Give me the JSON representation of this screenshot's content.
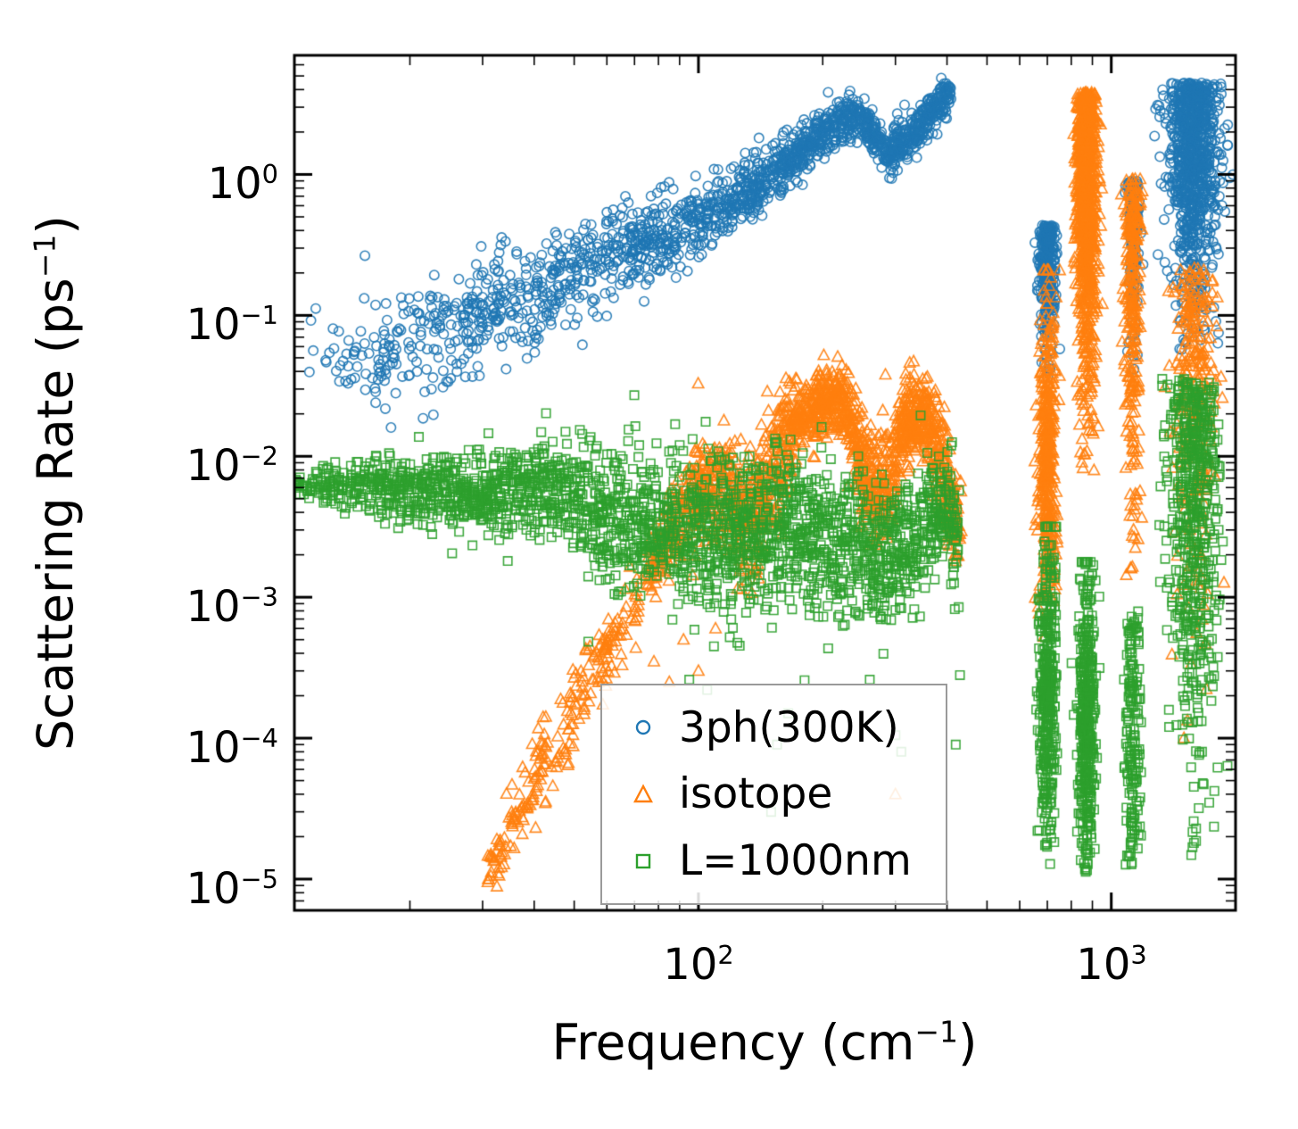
{
  "figure": {
    "background": "#ffffff"
  },
  "chart_data": {
    "type": "scatter",
    "xscale": "log",
    "yscale": "log",
    "xlim": [
      10.5,
      2000
    ],
    "ylim": [
      6e-06,
      7
    ],
    "xlabel": {
      "pre": "Frequency (cm",
      "sup": "−1",
      "post": ")"
    },
    "ylabel": {
      "pre": "Scattering Rate (ps",
      "sup": "−1",
      "post": ")"
    },
    "xticks": [
      {
        "value": 100,
        "base": "10",
        "exp": "2"
      },
      {
        "value": 1000,
        "base": "10",
        "exp": "3"
      }
    ],
    "yticks": [
      {
        "value": 1,
        "base": "10",
        "exp": "0"
      },
      {
        "value": 0.1,
        "base": "10",
        "exp": "−1"
      },
      {
        "value": 0.01,
        "base": "10",
        "exp": "−2"
      },
      {
        "value": 0.001,
        "base": "10",
        "exp": "−3"
      },
      {
        "value": 0.0001,
        "base": "10",
        "exp": "−4"
      },
      {
        "value": 1e-05,
        "base": "10",
        "exp": "−5"
      }
    ],
    "grid": false,
    "legend": {
      "position": "inside lower-center",
      "entries": [
        "3ph(300K)",
        "isotope",
        "L=1000nm"
      ]
    },
    "series": [
      {
        "name": "3ph(300K)",
        "marker": "circle",
        "color": "#1f77b4",
        "bands": [
          {
            "nodes": [
              [
                1.02,
                -1.35,
                0.16
              ],
              [
                1.2,
                -1.28,
                0.18
              ],
              [
                1.4,
                -1.1,
                0.2
              ],
              [
                1.6,
                -0.85,
                0.2
              ],
              [
                1.8,
                -0.55,
                0.17
              ],
              [
                2.0,
                -0.33,
                0.13
              ],
              [
                2.15,
                -0.08,
                0.11
              ],
              [
                2.3,
                0.28,
                0.09
              ],
              [
                2.38,
                0.43,
                0.07
              ],
              [
                2.46,
                0.15,
                0.09
              ],
              [
                2.53,
                0.3,
                0.08
              ],
              [
                2.61,
                0.6,
                0.06
              ]
            ],
            "count": 1700,
            "density_power": 0.55
          }
        ],
        "stripes": [
          {
            "x": 700,
            "x_spread": 0.01,
            "y_log_range": [
              -1.5,
              -0.36
            ],
            "count": 320,
            "bias": "top"
          },
          {
            "x": 1127,
            "x_spread": 0.008,
            "y_log_range": [
              -1.5,
              -0.04
            ],
            "count": 130,
            "bias": "top"
          },
          {
            "x": 1580,
            "x_spread": 0.03,
            "y_log_range": [
              -1.25,
              0.65
            ],
            "count": 950,
            "bias": "top"
          }
        ],
        "extra_points": [
          [
            12.5,
            0.048
          ],
          [
            13.5,
            0.034
          ],
          [
            17,
            0.04
          ],
          [
            18,
            0.016
          ],
          [
            26,
            0.04
          ],
          [
            27,
            0.1
          ]
        ]
      },
      {
        "name": "isotope",
        "marker": "triangle",
        "color": "#ff7f0e",
        "bands": [
          {
            "nodes": [
              [
                1.49,
                -4.95,
                0.1
              ],
              [
                1.58,
                -4.45,
                0.14
              ],
              [
                1.68,
                -3.9,
                0.15
              ],
              [
                1.77,
                -3.4,
                0.14
              ],
              [
                1.86,
                -2.95,
                0.12
              ]
            ],
            "count": 230,
            "density_power": 1
          },
          {
            "nodes": [
              [
                1.87,
                -2.85,
                0.12
              ],
              [
                1.93,
                -2.55,
                0.15
              ],
              [
                2.0,
                -2.2,
                0.18
              ],
              [
                2.06,
                -2.25,
                0.2
              ],
              [
                2.12,
                -2.45,
                0.22
              ],
              [
                2.2,
                -2.0,
                0.22
              ],
              [
                2.24,
                -1.75,
                0.14
              ],
              [
                2.3,
                -1.62,
                0.12
              ],
              [
                2.35,
                -1.58,
                0.12
              ],
              [
                2.4,
                -2.1,
                0.2
              ],
              [
                2.45,
                -2.3,
                0.2
              ],
              [
                2.5,
                -1.75,
                0.14
              ],
              [
                2.55,
                -1.68,
                0.13
              ],
              [
                2.6,
                -2.2,
                0.2
              ],
              [
                2.63,
                -2.5,
                0.15
              ]
            ],
            "count": 1600,
            "density_power": 0.8
          }
        ],
        "stripes": [
          {
            "x": 700,
            "x_spread": 0.01,
            "y_log_range": [
              -3.3,
              -0.68
            ],
            "count": 400,
            "bias": "mid"
          },
          {
            "x": 871,
            "x_spread": 0.012,
            "y_log_range": [
              -2.1,
              0.58
            ],
            "count": 950,
            "bias": "top"
          },
          {
            "x": 1127,
            "x_spread": 0.009,
            "y_log_range": [
              -2.9,
              -0.03
            ],
            "count": 280,
            "bias": "top"
          },
          {
            "x": 1580,
            "x_spread": 0.028,
            "y_log_range": [
              -4.0,
              -0.66
            ],
            "count": 260,
            "bias": "top"
          }
        ],
        "extra_points": [
          [
            78,
            0.00035
          ],
          [
            85,
            0.00025
          ],
          [
            92,
            0.0005
          ],
          [
            100,
            0.0003
          ],
          [
            110,
            0.0006
          ],
          [
            300,
            4e-05
          ],
          [
            1500,
            0.0001
          ]
        ]
      },
      {
        "name": "L=1000nm",
        "marker": "square",
        "color": "#2ca02c",
        "bands": [
          {
            "nodes": [
              [
                1.02,
                -2.22,
                0.05
              ],
              [
                1.2,
                -2.2,
                0.1
              ],
              [
                1.35,
                -2.25,
                0.12
              ],
              [
                1.5,
                -2.3,
                0.15
              ],
              [
                1.65,
                -2.2,
                0.18
              ],
              [
                1.78,
                -2.45,
                0.25
              ],
              [
                1.9,
                -2.5,
                0.28
              ],
              [
                2.0,
                -2.5,
                0.28
              ],
              [
                2.1,
                -2.55,
                0.28
              ],
              [
                2.2,
                -2.5,
                0.26
              ],
              [
                2.3,
                -2.6,
                0.28
              ],
              [
                2.4,
                -2.65,
                0.28
              ],
              [
                2.47,
                -2.75,
                0.25
              ],
              [
                2.55,
                -2.5,
                0.22
              ],
              [
                2.6,
                -2.35,
                0.18
              ],
              [
                2.63,
                -2.6,
                0.2
              ]
            ],
            "count": 2400,
            "density_power": 0.75
          }
        ],
        "stripes": [
          {
            "x": 700,
            "x_spread": 0.01,
            "y_log_range": [
              -4.9,
              -2.5
            ],
            "count": 380,
            "bias": "mid"
          },
          {
            "x": 871,
            "x_spread": 0.01,
            "y_log_range": [
              -4.95,
              -2.75
            ],
            "count": 430,
            "bias": "mid"
          },
          {
            "x": 1127,
            "x_spread": 0.009,
            "y_log_range": [
              -4.9,
              -3.1
            ],
            "count": 170,
            "bias": "uniform"
          },
          {
            "x": 1580,
            "x_spread": 0.03,
            "y_log_range": [
              -4.95,
              -1.45
            ],
            "count": 560,
            "bias": "top"
          }
        ],
        "extra_points": [
          [
            95,
            0.00026
          ],
          [
            105,
            0.00022
          ],
          [
            150,
            3e-05
          ],
          [
            165,
            0.00015
          ],
          [
            260,
            0.00026
          ],
          [
            300,
            0.000105
          ],
          [
            310,
            8e-05
          ],
          [
            420,
            9e-05
          ],
          [
            430,
            0.00028
          ],
          [
            155,
            9e-05
          ]
        ]
      }
    ]
  }
}
